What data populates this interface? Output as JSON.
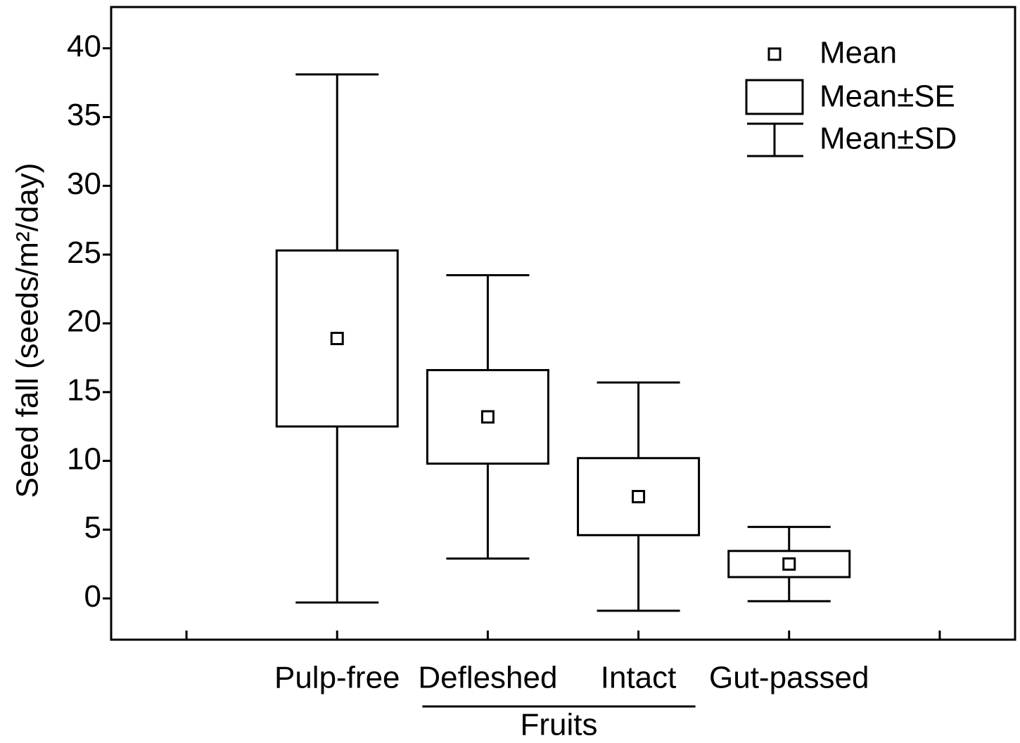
{
  "chart_data": {
    "type": "box",
    "y_label": "Seed fall (seeds/m²/day)",
    "categories": [
      null,
      "Pulp-free",
      "Defleshed",
      "Intact",
      "Gut-passed",
      null
    ],
    "group_label": "Fruits",
    "series": [
      {
        "name": "Mean",
        "se_name": "Mean±SE",
        "sd_name": "Mean±SD",
        "color": "#000000",
        "values": [
          null,
          18.9,
          13.2,
          7.4,
          2.5,
          null
        ],
        "se": [
          null,
          6.4,
          3.4,
          2.8,
          0.95,
          null
        ],
        "sd": [
          null,
          19.2,
          10.3,
          8.3,
          2.7,
          null
        ]
      }
    ],
    "ylim": [
      -3,
      43
    ],
    "yticks": [
      0,
      5,
      10,
      15,
      20,
      25,
      30,
      35,
      40
    ],
    "legend": "upper right",
    "grid": false
  }
}
